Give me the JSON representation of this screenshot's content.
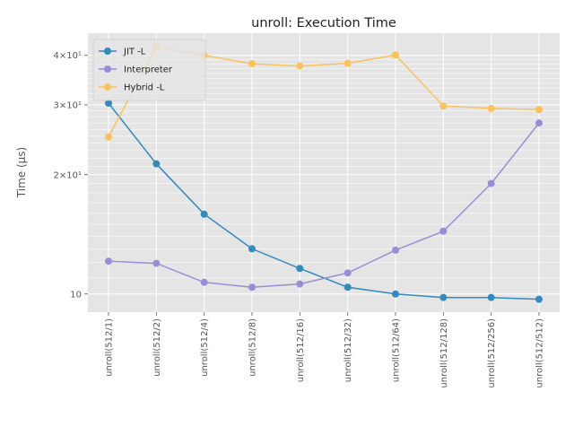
{
  "chart_data": {
    "type": "line",
    "title": "unroll: Execution Time",
    "xlabel": "",
    "ylabel": "Time (μs)",
    "y_scale": "log",
    "ylim": [
      9.0,
      45.5
    ],
    "grid": true,
    "legend_position": "upper-left",
    "categories": [
      "unroll(512/1)",
      "unroll(512/2)",
      "unroll(512/4)",
      "unroll(512/8)",
      "unroll(512/16)",
      "unroll(512/32)",
      "unroll(512/64)",
      "unroll(512/128)",
      "unroll(512/256)",
      "unroll(512/512)"
    ],
    "y_ticks": [
      {
        "value": 10,
        "label": "10"
      },
      {
        "value": 20,
        "label": "2×10¹"
      },
      {
        "value": 30,
        "label": "3×10¹"
      },
      {
        "value": 40,
        "label": "4×10¹"
      }
    ],
    "series": [
      {
        "name": "JIT -L",
        "color": "#348ABD",
        "values": [
          30.3,
          21.3,
          15.9,
          13.0,
          11.6,
          10.4,
          10.0,
          9.8,
          9.8,
          9.7
        ]
      },
      {
        "name": "Interpreter",
        "color": "#988ED5",
        "values": [
          12.1,
          11.95,
          10.7,
          10.4,
          10.6,
          11.3,
          12.9,
          14.4,
          19.0,
          27.0
        ]
      },
      {
        "name": "Hybrid -L",
        "color": "#FBC15E",
        "values": [
          24.9,
          42.0,
          40.0,
          38.1,
          37.6,
          38.2,
          40.1,
          29.8,
          29.4,
          29.2
        ]
      }
    ]
  }
}
